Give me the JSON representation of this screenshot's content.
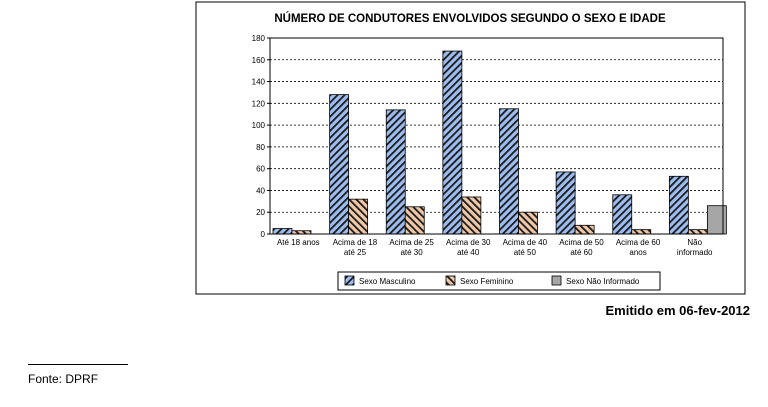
{
  "chart_data": {
    "type": "bar",
    "title": "NÚMERO DE CONDUTORES ENVOLVIDOS SEGUNDO O SEXO E IDADE",
    "xlabel": "",
    "ylabel": "",
    "ylim": [
      0,
      180
    ],
    "yticks": [
      "0",
      "20",
      "40",
      "60",
      "80",
      "100",
      "120",
      "140",
      "160",
      "180"
    ],
    "grid": true,
    "legend_position": "bottom",
    "categories": [
      [
        "Até 18 anos"
      ],
      [
        "Acima de 18",
        "até 25"
      ],
      [
        "Acima de 25",
        "até 30"
      ],
      [
        "Acima de 30",
        "até 40"
      ],
      [
        "Acima de 40",
        "até 50"
      ],
      [
        "Acima de 50",
        "até 60"
      ],
      [
        "Acima de 60",
        "anos"
      ],
      [
        "Não",
        "informado"
      ]
    ],
    "series": [
      {
        "name": "Sexo Masculino",
        "color": "#9dbdf0",
        "pattern": "hatch",
        "values": [
          5,
          128,
          114,
          168,
          115,
          57,
          36,
          53
        ]
      },
      {
        "name": "Sexo Feminino",
        "color": "#f0c8a8",
        "pattern": "hatch",
        "values": [
          3,
          32,
          25,
          34,
          20,
          8,
          4,
          4
        ]
      },
      {
        "name": "Sexo Não Informado",
        "color": "#a6a6a6",
        "pattern": "solid",
        "values": [
          0,
          0,
          0,
          0,
          0,
          0,
          0,
          26
        ]
      }
    ]
  },
  "footer": {
    "emitido": "Emitido em 06-fev-2012",
    "fonte": "Fonte: DPRF"
  }
}
